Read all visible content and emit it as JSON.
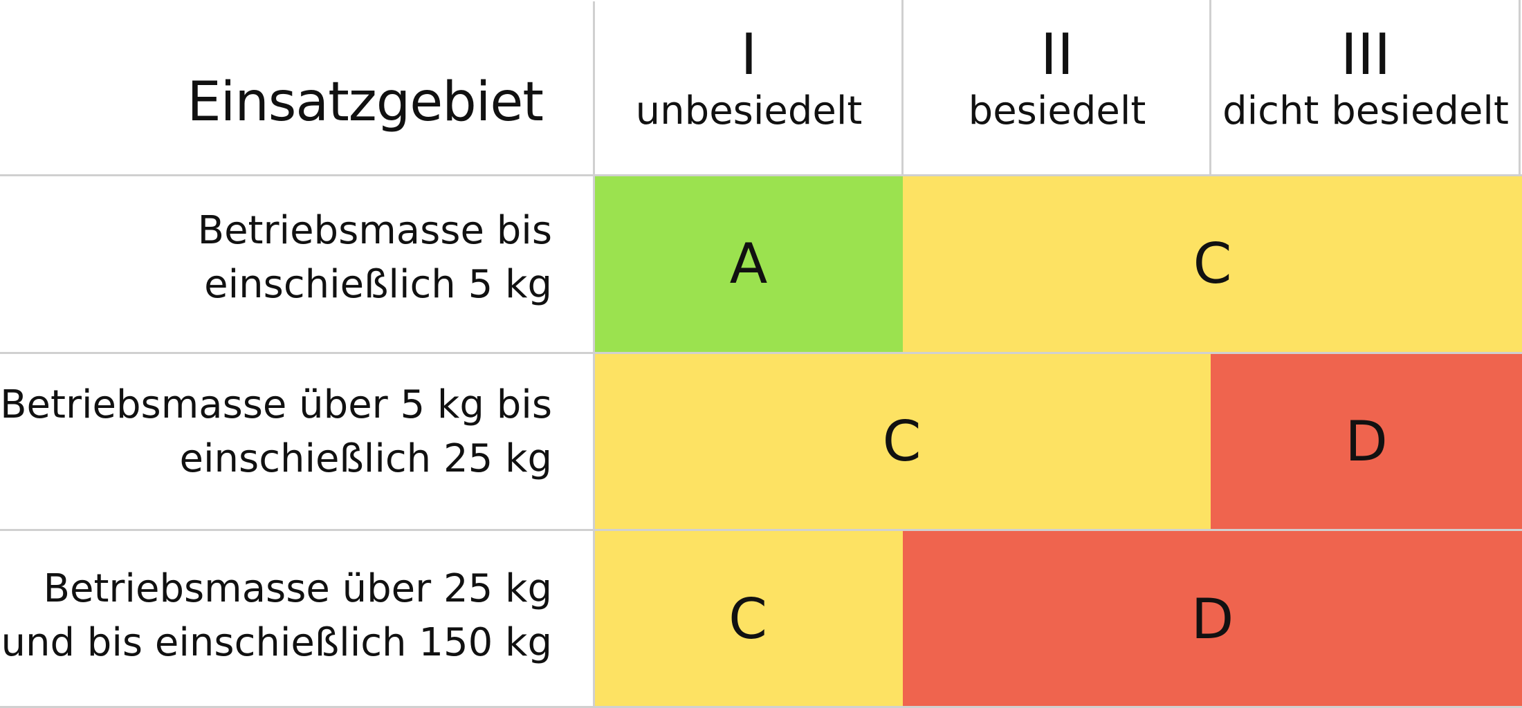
{
  "table": {
    "corner_title": "Einsatzgebiet",
    "columns": [
      {
        "roman": "I",
        "label": "unbesiedelt"
      },
      {
        "roman": "II",
        "label": "besiedelt"
      },
      {
        "roman": "III",
        "label": "dicht besiedelt"
      }
    ],
    "rows": [
      {
        "label_line1": "Betriebsmasse bis",
        "label_line2": "einschießlich 5 kg",
        "cells": [
          {
            "value": "A",
            "color": "#9be24f"
          },
          {
            "value": "C",
            "color": "#fde263"
          }
        ]
      },
      {
        "label_line1": "Betriebsmasse über 5 kg bis",
        "label_line2": "einschießlich 25 kg",
        "cells": [
          {
            "value": "C",
            "color": "#fde263"
          },
          {
            "value": "D",
            "color": "#ef644e"
          }
        ]
      },
      {
        "label_line1": "Betriebsmasse über 25 kg",
        "label_line2": "und bis einschießlich 150 kg",
        "cells": [
          {
            "value": "C",
            "color": "#fde263"
          },
          {
            "value": "D",
            "color": "#ef644e"
          }
        ]
      }
    ]
  }
}
